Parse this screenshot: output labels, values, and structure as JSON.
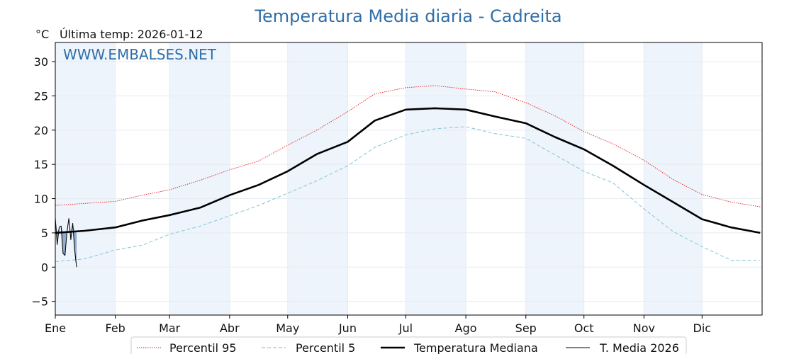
{
  "header": {
    "title": "Temperatura Media diaria - Cadreita",
    "unit": "°C",
    "last_update": "Última temp: 2026-01-12",
    "watermark": "WWW.EMBALSES.NET"
  },
  "colors": {
    "p95": "#e41a1c",
    "p5": "#8ec9dc",
    "median": "#000000",
    "current": "#000000",
    "current_fill": "#7b9bbf",
    "band": "#eef4fb",
    "title": "#2f6ea8"
  },
  "chart_data": {
    "type": "line",
    "title": "Temperatura Media diaria - Cadreita",
    "ylabel": "°C",
    "xlim": [
      0,
      365
    ],
    "ylim": [
      -7,
      32.8
    ],
    "y_ticks": [
      30,
      25,
      20,
      15,
      10,
      5,
      0,
      -5
    ],
    "y_tick_labels": [
      "30",
      "25",
      "20",
      "15",
      "10",
      "5",
      "0",
      "−5"
    ],
    "x_ticks": [
      0,
      31,
      59,
      90,
      120,
      151,
      181,
      212,
      243,
      273,
      304,
      334
    ],
    "x_tick_labels": [
      "Ene",
      "Feb",
      "Mar",
      "Abr",
      "May",
      "Jun",
      "Jul",
      "Ago",
      "Sep",
      "Oct",
      "Nov",
      "Dic"
    ],
    "shaded_months": [
      [
        0,
        31
      ],
      [
        59,
        90
      ],
      [
        120,
        151
      ],
      [
        181,
        212
      ],
      [
        243,
        273
      ],
      [
        304,
        334
      ]
    ],
    "grid": true,
    "legend_position": "bottom",
    "series": [
      {
        "name": "Percentil 95",
        "style": "dotted",
        "color": "#e41a1c",
        "x": [
          0,
          15,
          31,
          45,
          59,
          75,
          90,
          105,
          120,
          135,
          151,
          165,
          181,
          196,
          212,
          227,
          243,
          258,
          273,
          288,
          304,
          319,
          334,
          349,
          364
        ],
        "y": [
          9.0,
          9.3,
          9.6,
          10.5,
          11.3,
          12.7,
          14.2,
          15.5,
          17.8,
          20.0,
          22.7,
          25.3,
          26.2,
          26.5,
          26.0,
          25.6,
          24.0,
          22.1,
          19.8,
          18.0,
          15.6,
          12.8,
          10.6,
          9.5,
          8.8
        ]
      },
      {
        "name": "Percentil 5",
        "style": "dashed",
        "color": "#8ec9dc",
        "x": [
          0,
          15,
          31,
          45,
          59,
          75,
          90,
          105,
          120,
          135,
          151,
          165,
          181,
          196,
          212,
          227,
          243,
          258,
          273,
          288,
          304,
          319,
          334,
          349,
          364
        ],
        "y": [
          0.8,
          1.2,
          2.5,
          3.2,
          4.8,
          6.0,
          7.5,
          9.0,
          10.8,
          12.6,
          14.8,
          17.5,
          19.3,
          20.2,
          20.5,
          19.5,
          18.8,
          16.4,
          14.0,
          12.3,
          8.5,
          5.2,
          3.0,
          1.0,
          1.0
        ]
      },
      {
        "name": "Temperatura Mediana",
        "style": "solid-thick",
        "color": "#000000",
        "x": [
          0,
          15,
          31,
          45,
          59,
          75,
          90,
          105,
          120,
          135,
          151,
          165,
          181,
          196,
          212,
          227,
          243,
          258,
          273,
          288,
          304,
          319,
          334,
          349,
          364
        ],
        "y": [
          5.0,
          5.3,
          5.8,
          6.8,
          7.6,
          8.7,
          10.5,
          12.0,
          14.0,
          16.5,
          18.3,
          21.4,
          23.0,
          23.2,
          23.0,
          22.0,
          21.0,
          19.0,
          17.2,
          14.8,
          12.0,
          9.5,
          7.0,
          5.8,
          5.0
        ]
      },
      {
        "name": "T. Media 2026",
        "style": "solid-thin",
        "color": "#000000",
        "x": [
          0,
          1,
          2,
          3,
          4,
          5,
          6,
          7,
          8,
          9,
          10,
          11
        ],
        "y": [
          7.2,
          3.3,
          5.8,
          6.0,
          2.0,
          1.7,
          5.1,
          7.1,
          4.0,
          6.4,
          2.5,
          0.0
        ]
      }
    ]
  }
}
